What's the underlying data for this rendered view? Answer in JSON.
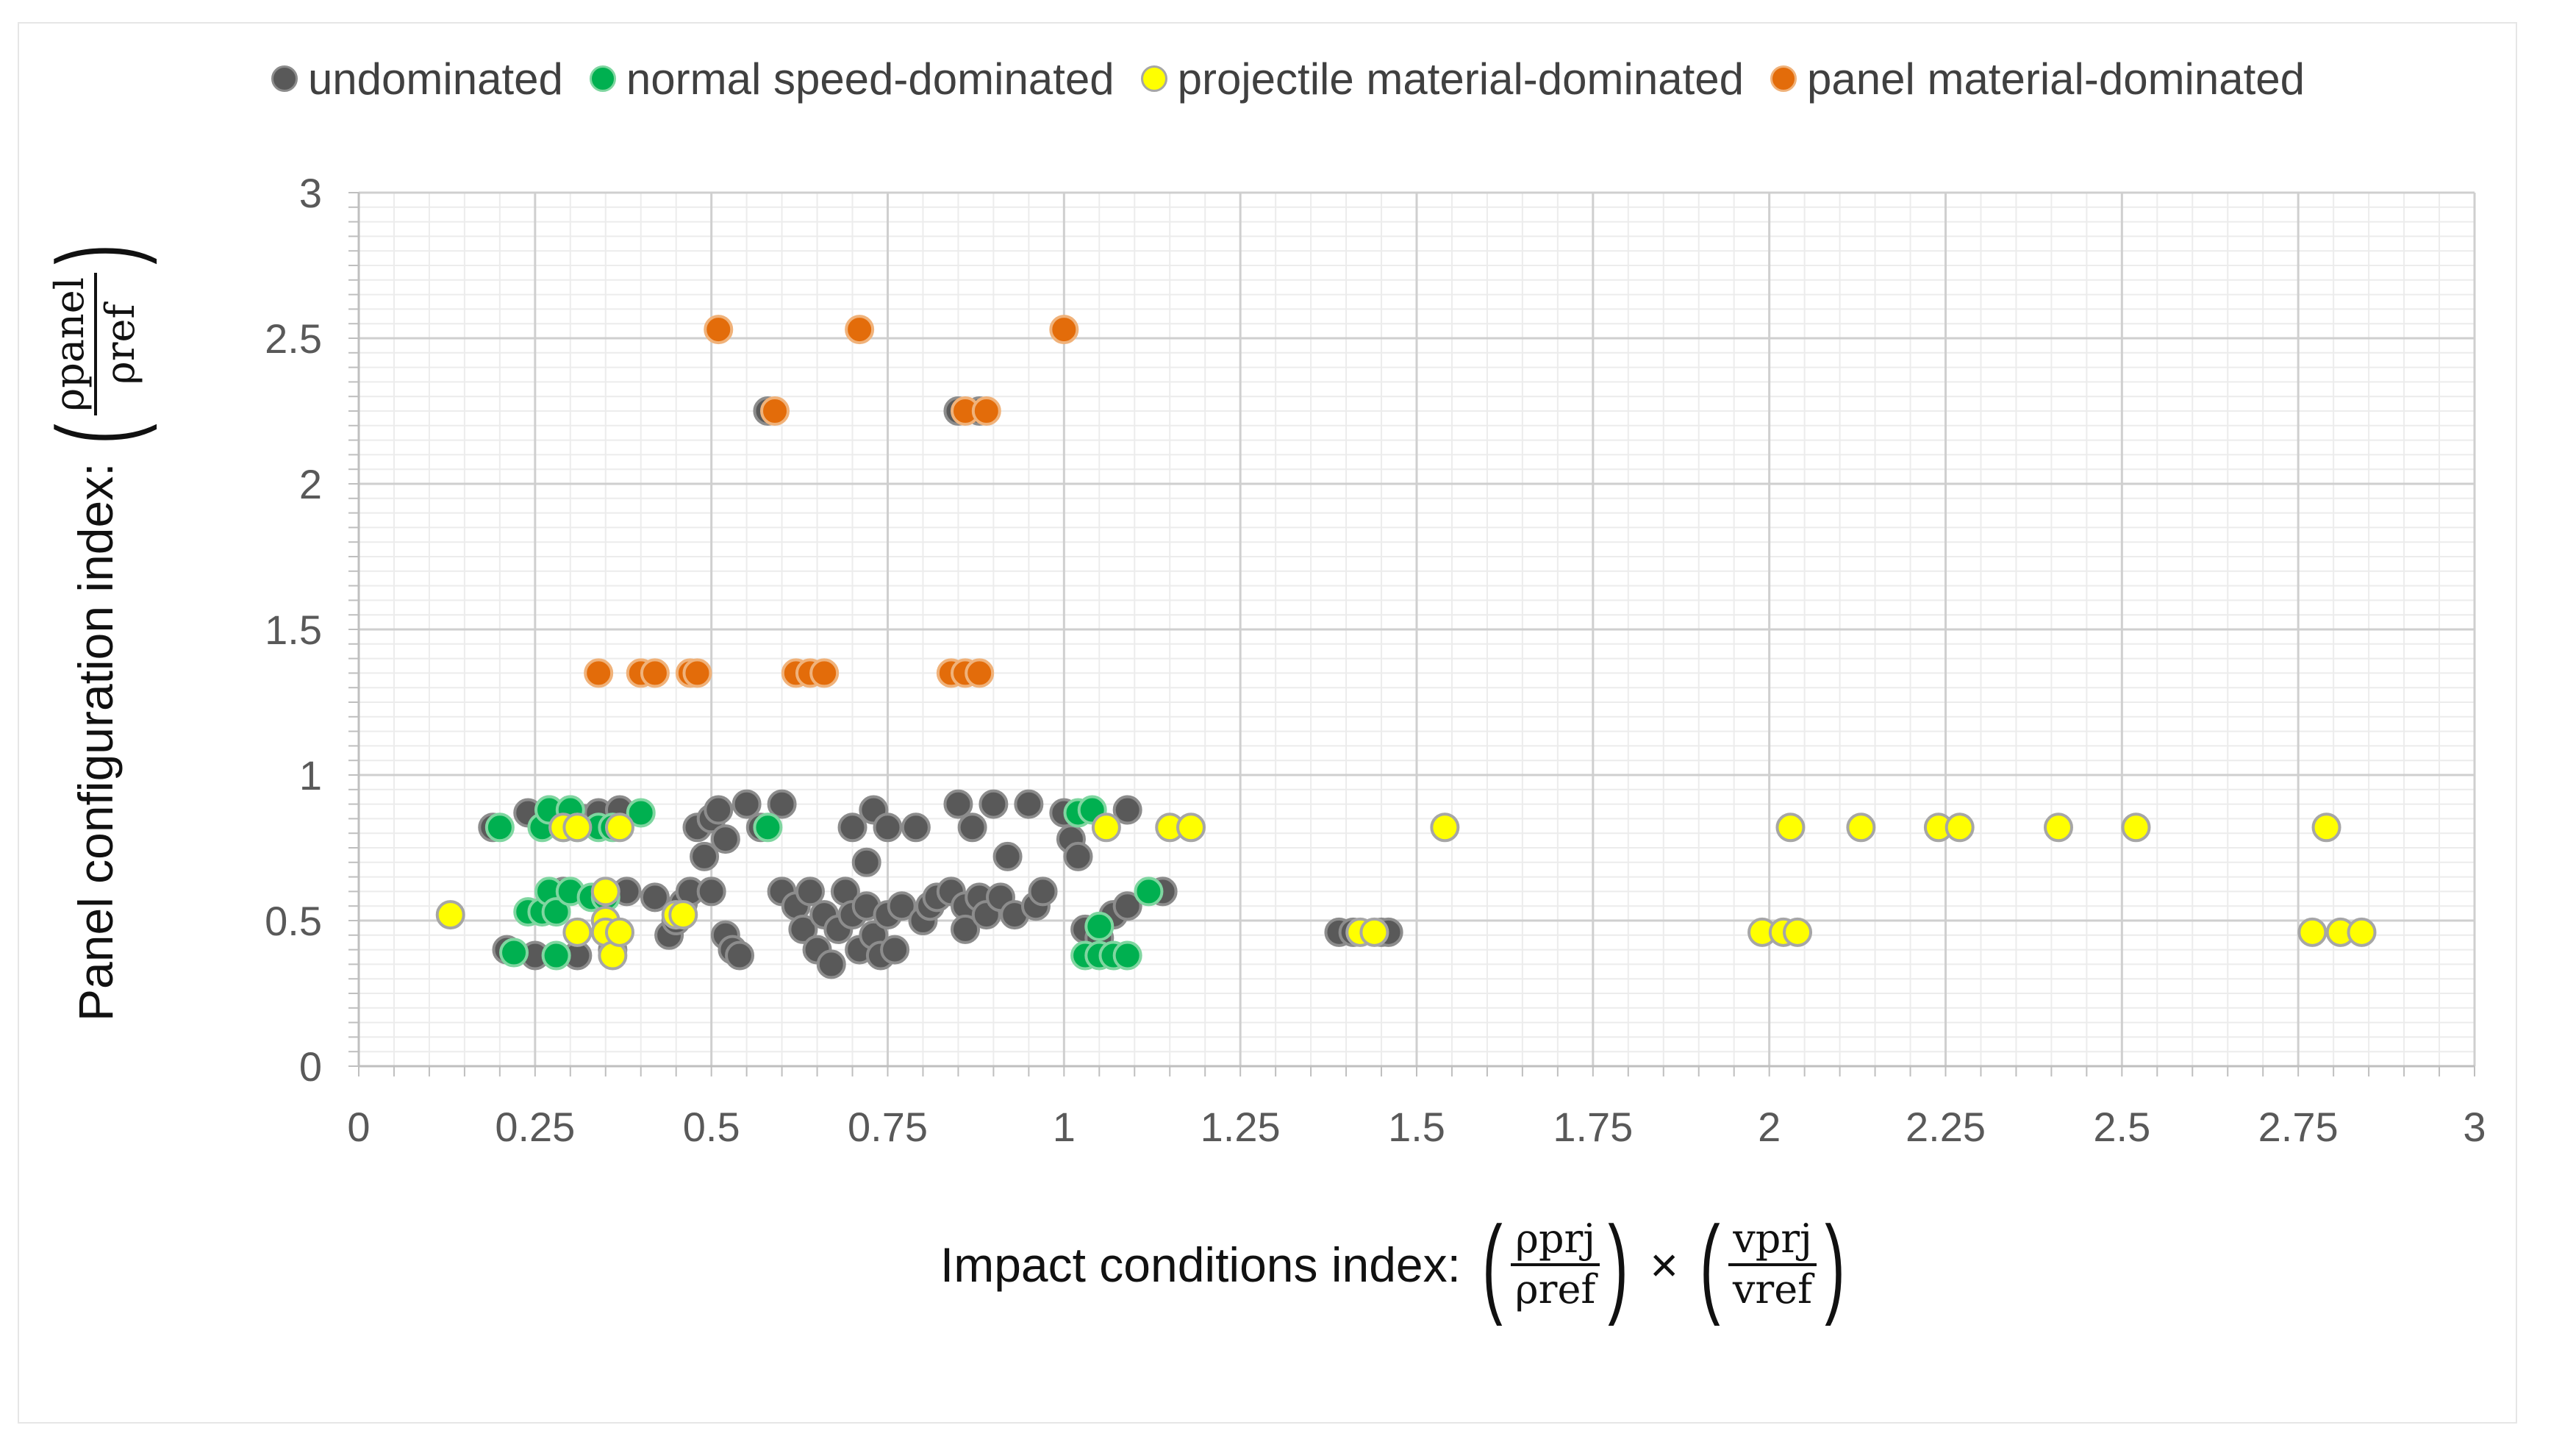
{
  "chart_data": {
    "type": "scatter",
    "xlim": [
      0,
      3
    ],
    "ylim": [
      0,
      3
    ],
    "x_ticks": [
      "0",
      "0.25",
      "0.5",
      "0.75",
      "1",
      "1.25",
      "1.5",
      "1.75",
      "2",
      "2.25",
      "2.5",
      "2.75",
      "3"
    ],
    "y_ticks": [
      "0",
      "0.5",
      "1",
      "1.5",
      "2",
      "2.5",
      "3"
    ],
    "grid": true,
    "minor_grid": true,
    "legend_position": "top",
    "xlabel": {
      "prefix": "Impact conditions index:",
      "frac1_num": "ρprj",
      "frac1_den": "ρref",
      "operator": "×",
      "frac2_num": "vprj",
      "frac2_den": "vref"
    },
    "ylabel": {
      "prefix": "Panel configuration index:",
      "frac_num": "ρpanel",
      "frac_den": "ρref"
    },
    "series": [
      {
        "name": "undominated",
        "color": "#595959",
        "edge": "#8c8c8c",
        "points": [
          [
            0.19,
            0.82
          ],
          [
            0.21,
            0.4
          ],
          [
            0.24,
            0.87
          ],
          [
            0.25,
            0.38
          ],
          [
            0.27,
            0.88
          ],
          [
            0.29,
            0.6
          ],
          [
            0.3,
            0.88
          ],
          [
            0.31,
            0.38
          ],
          [
            0.32,
            0.85
          ],
          [
            0.34,
            0.87
          ],
          [
            0.36,
            0.4
          ],
          [
            0.37,
            0.88
          ],
          [
            0.38,
            0.6
          ],
          [
            0.42,
            0.58
          ],
          [
            0.44,
            0.45
          ],
          [
            0.45,
            0.5
          ],
          [
            0.46,
            0.56
          ],
          [
            0.47,
            0.6
          ],
          [
            0.48,
            0.82
          ],
          [
            0.49,
            0.72
          ],
          [
            0.5,
            0.85
          ],
          [
            0.5,
            0.6
          ],
          [
            0.51,
            0.88
          ],
          [
            0.52,
            0.45
          ],
          [
            0.52,
            0.78
          ],
          [
            0.53,
            0.4
          ],
          [
            0.54,
            0.38
          ],
          [
            0.55,
            0.9
          ],
          [
            0.57,
            0.82
          ],
          [
            0.6,
            0.9
          ],
          [
            0.6,
            0.6
          ],
          [
            0.62,
            0.55
          ],
          [
            0.63,
            0.47
          ],
          [
            0.64,
            0.6
          ],
          [
            0.65,
            0.4
          ],
          [
            0.66,
            0.52
          ],
          [
            0.67,
            0.35
          ],
          [
            0.68,
            0.47
          ],
          [
            0.69,
            0.6
          ],
          [
            0.7,
            0.82
          ],
          [
            0.7,
            0.52
          ],
          [
            0.71,
            0.4
          ],
          [
            0.72,
            0.7
          ],
          [
            0.72,
            0.55
          ],
          [
            0.73,
            0.45
          ],
          [
            0.73,
            0.88
          ],
          [
            0.74,
            0.38
          ],
          [
            0.75,
            0.82
          ],
          [
            0.75,
            0.52
          ],
          [
            0.76,
            0.4
          ],
          [
            0.77,
            0.55
          ],
          [
            0.79,
            0.82
          ],
          [
            0.8,
            0.5
          ],
          [
            0.81,
            0.55
          ],
          [
            0.82,
            0.58
          ],
          [
            0.84,
            0.6
          ],
          [
            0.85,
            0.9
          ],
          [
            0.86,
            0.55
          ],
          [
            0.86,
            0.47
          ],
          [
            0.87,
            0.82
          ],
          [
            0.88,
            0.58
          ],
          [
            0.89,
            0.52
          ],
          [
            0.9,
            0.9
          ],
          [
            0.91,
            0.58
          ],
          [
            0.92,
            0.72
          ],
          [
            0.93,
            0.52
          ],
          [
            0.95,
            0.9
          ],
          [
            0.96,
            0.55
          ],
          [
            0.97,
            0.6
          ],
          [
            1.0,
            0.87
          ],
          [
            1.01,
            0.78
          ],
          [
            1.02,
            0.72
          ],
          [
            1.03,
            0.47
          ],
          [
            1.05,
            0.44
          ],
          [
            1.07,
            0.52
          ],
          [
            1.09,
            0.55
          ],
          [
            1.09,
            0.88
          ],
          [
            1.14,
            0.6
          ],
          [
            0.58,
            2.25
          ],
          [
            0.85,
            2.25
          ],
          [
            0.88,
            2.25
          ],
          [
            1.39,
            0.46
          ],
          [
            1.41,
            0.46
          ],
          [
            1.45,
            0.46
          ],
          [
            1.46,
            0.46
          ]
        ]
      },
      {
        "name": "normal speed-dominated",
        "color": "#00b050",
        "edge": "#7fd6a0",
        "points": [
          [
            0.2,
            0.82
          ],
          [
            0.22,
            0.39
          ],
          [
            0.24,
            0.53
          ],
          [
            0.26,
            0.53
          ],
          [
            0.26,
            0.82
          ],
          [
            0.27,
            0.6
          ],
          [
            0.27,
            0.88
          ],
          [
            0.28,
            0.53
          ],
          [
            0.28,
            0.38
          ],
          [
            0.29,
            0.82
          ],
          [
            0.3,
            0.6
          ],
          [
            0.3,
            0.88
          ],
          [
            0.31,
            0.82
          ],
          [
            0.33,
            0.58
          ],
          [
            0.34,
            0.82
          ],
          [
            0.35,
            0.58
          ],
          [
            0.36,
            0.82
          ],
          [
            0.4,
            0.87
          ],
          [
            0.58,
            0.82
          ],
          [
            1.02,
            0.87
          ],
          [
            1.03,
            0.38
          ],
          [
            1.04,
            0.88
          ],
          [
            1.05,
            0.38
          ],
          [
            1.05,
            0.48
          ],
          [
            1.07,
            0.38
          ],
          [
            1.09,
            0.38
          ],
          [
            1.12,
            0.6
          ]
        ]
      },
      {
        "name": "projectile material-dominated",
        "color": "#ffff00",
        "edge": "#a6a6a6",
        "points": [
          [
            0.13,
            0.52
          ],
          [
            0.29,
            0.82
          ],
          [
            0.31,
            0.82
          ],
          [
            0.31,
            0.46
          ],
          [
            0.35,
            0.6
          ],
          [
            0.35,
            0.5
          ],
          [
            0.35,
            0.46
          ],
          [
            0.36,
            0.38
          ],
          [
            0.37,
            0.46
          ],
          [
            0.37,
            0.82
          ],
          [
            0.45,
            0.52
          ],
          [
            0.46,
            0.52
          ],
          [
            1.06,
            0.82
          ],
          [
            1.15,
            0.82
          ],
          [
            1.18,
            0.82
          ],
          [
            1.42,
            0.46
          ],
          [
            1.44,
            0.46
          ],
          [
            1.54,
            0.82
          ],
          [
            1.99,
            0.46
          ],
          [
            2.02,
            0.46
          ],
          [
            2.03,
            0.82
          ],
          [
            2.04,
            0.46
          ],
          [
            2.13,
            0.82
          ],
          [
            2.24,
            0.82
          ],
          [
            2.27,
            0.82
          ],
          [
            2.41,
            0.82
          ],
          [
            2.52,
            0.82
          ],
          [
            2.77,
            0.46
          ],
          [
            2.79,
            0.82
          ],
          [
            2.81,
            0.46
          ],
          [
            2.84,
            0.46
          ]
        ]
      },
      {
        "name": "panel material-dominated",
        "color": "#e36c0a",
        "edge": "#f0b27a",
        "points": [
          [
            0.51,
            2.53
          ],
          [
            0.71,
            2.53
          ],
          [
            1.0,
            2.53
          ],
          [
            0.59,
            2.25
          ],
          [
            0.86,
            2.25
          ],
          [
            0.89,
            2.25
          ],
          [
            0.34,
            1.35
          ],
          [
            0.4,
            1.35
          ],
          [
            0.42,
            1.35
          ],
          [
            0.47,
            1.35
          ],
          [
            0.48,
            1.35
          ],
          [
            0.62,
            1.35
          ],
          [
            0.64,
            1.35
          ],
          [
            0.66,
            1.35
          ],
          [
            0.84,
            1.35
          ],
          [
            0.86,
            1.35
          ],
          [
            0.88,
            1.35
          ]
        ]
      }
    ]
  }
}
